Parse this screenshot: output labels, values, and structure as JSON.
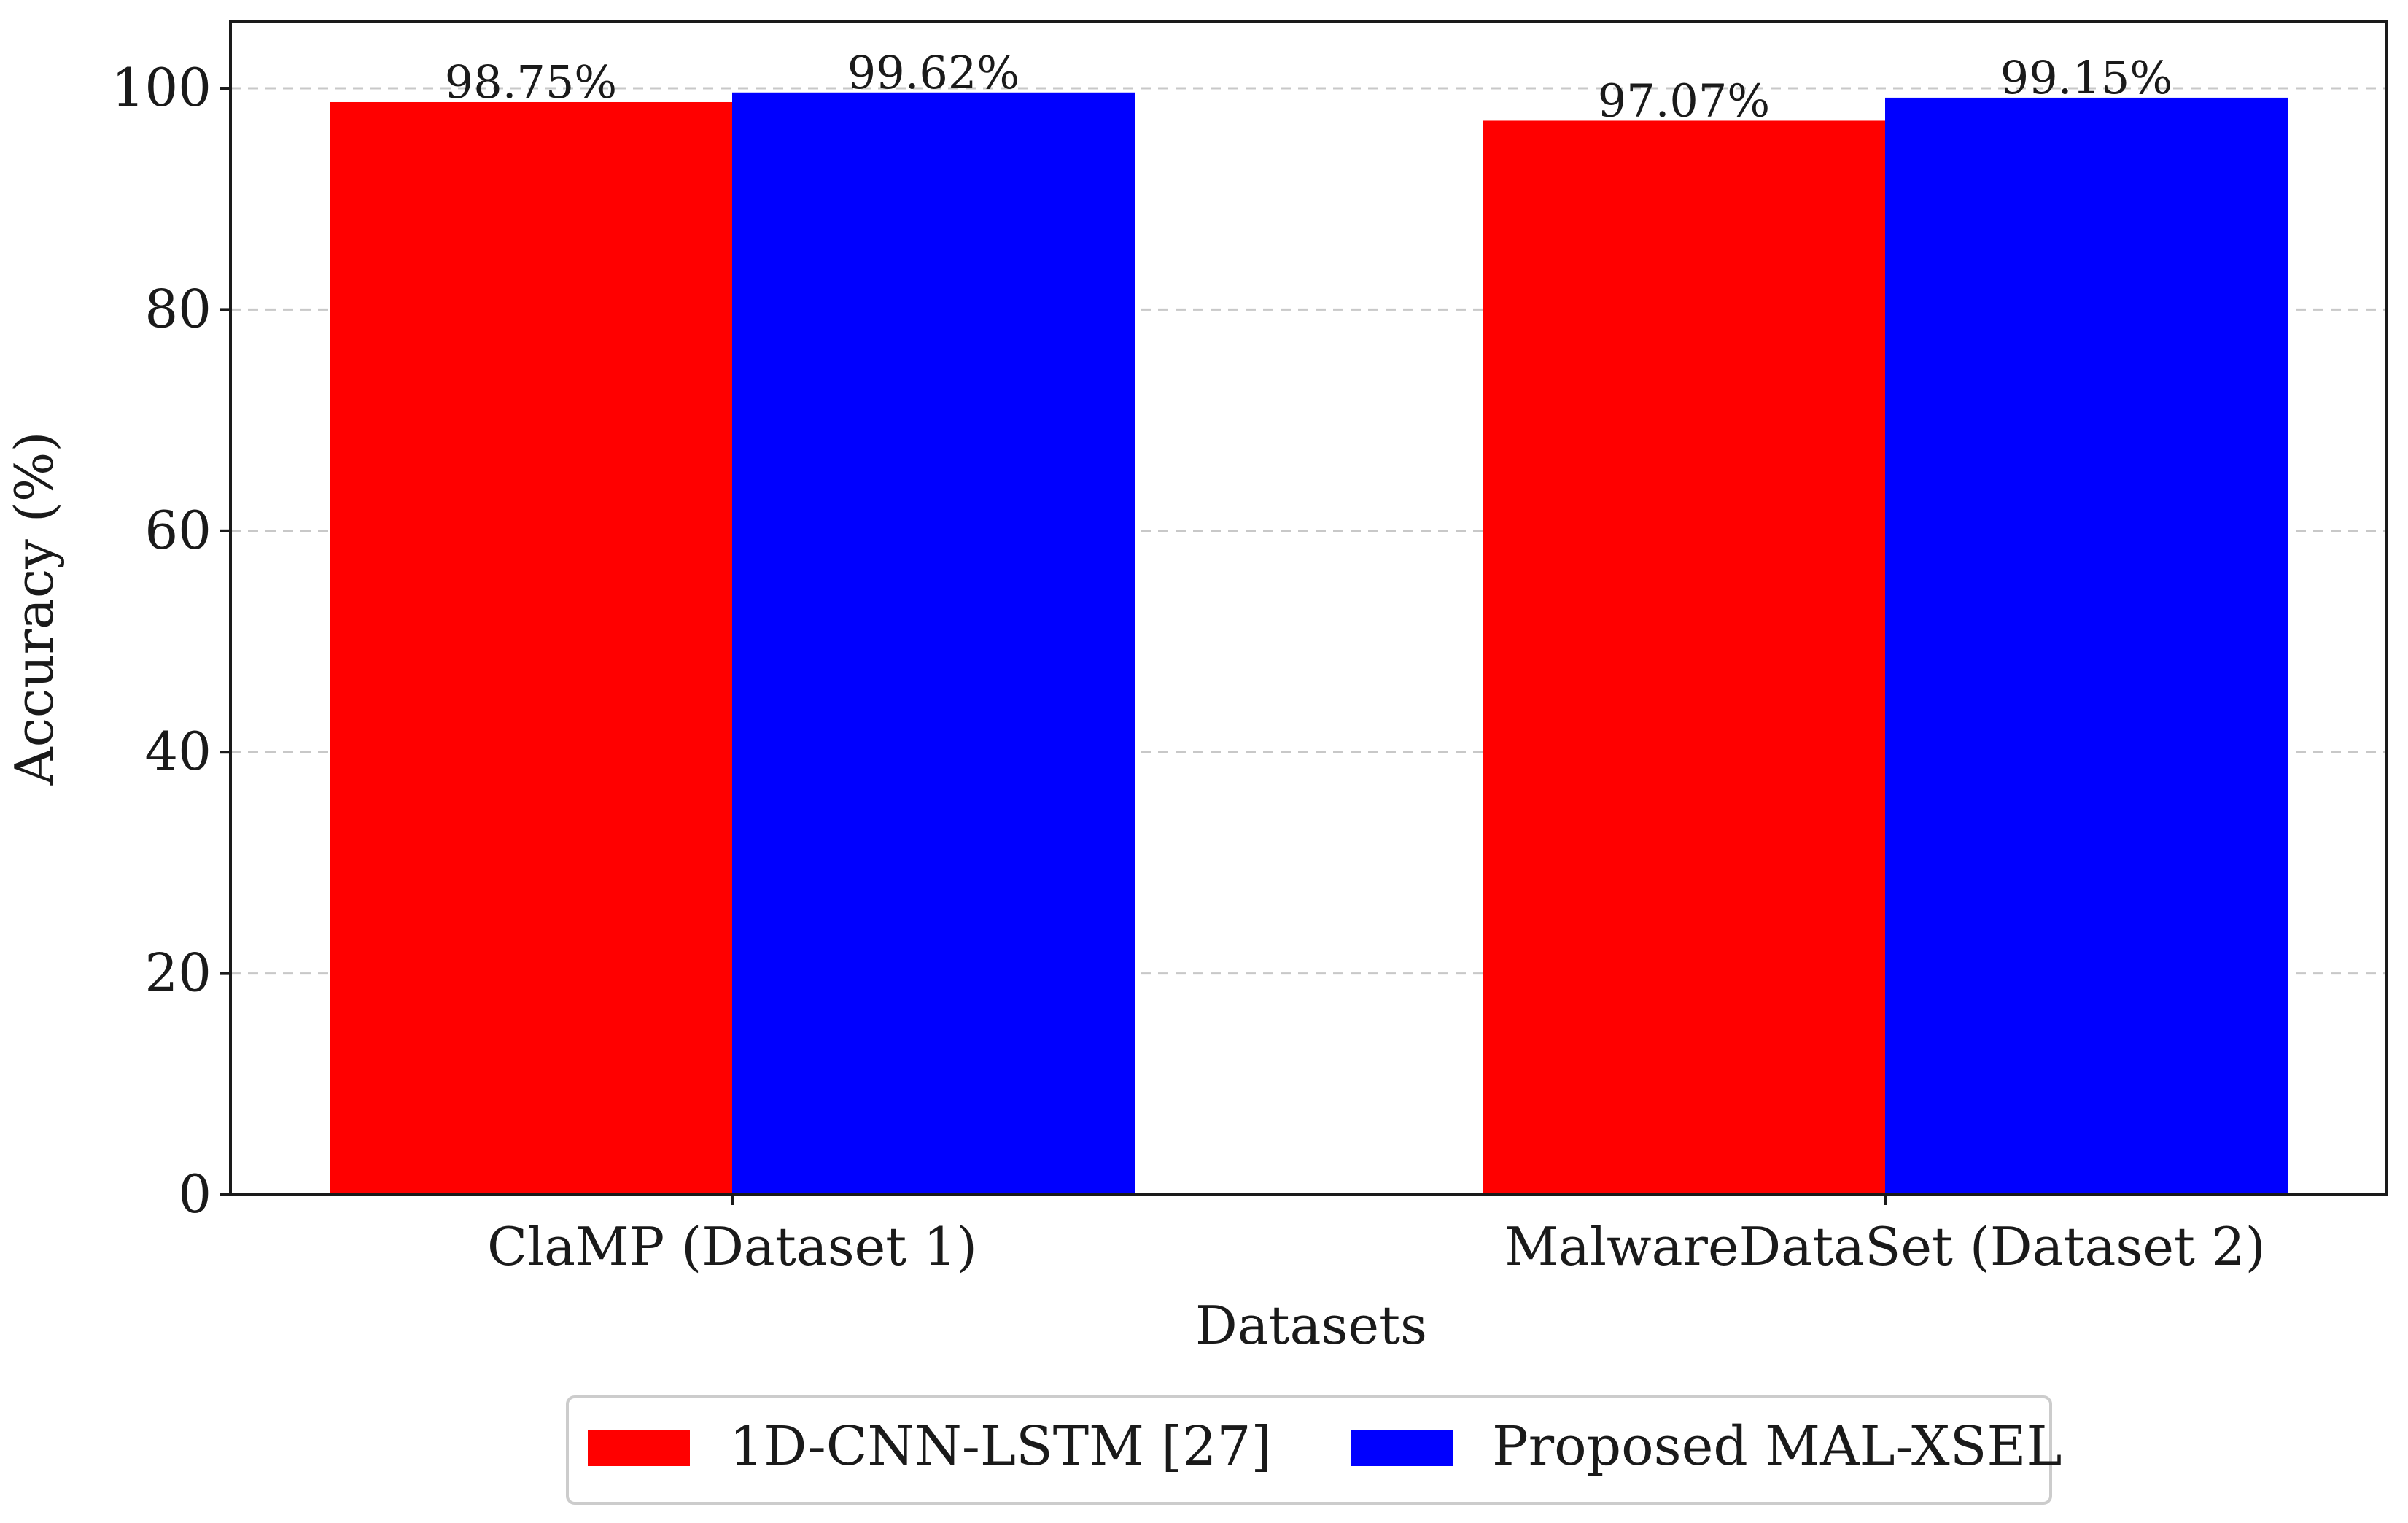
{
  "chart_data": {
    "type": "bar",
    "title": "",
    "xlabel": "Datasets",
    "ylabel": "Accuracy (%)",
    "categories": [
      "ClaMP (Dataset 1)",
      "MalwareDataSet (Dataset 2)"
    ],
    "series": [
      {
        "name": "1D-CNN-LSTM [27]",
        "color": "#ff0000",
        "values": [
          98.75,
          97.07
        ],
        "labels": [
          "98.75%",
          "97.07%"
        ]
      },
      {
        "name": "Proposed MAL-XSEL",
        "color": "#0000ff",
        "values": [
          99.62,
          99.15
        ],
        "labels": [
          "99.62%",
          "99.15%"
        ]
      }
    ],
    "ylim": [
      0,
      106
    ],
    "yticks": [
      0,
      20,
      40,
      60,
      80,
      100
    ],
    "ytick_labels": [
      "0",
      "20",
      "40",
      "60",
      "80",
      "100"
    ],
    "grid": true,
    "legend_position": "bottom-center"
  }
}
